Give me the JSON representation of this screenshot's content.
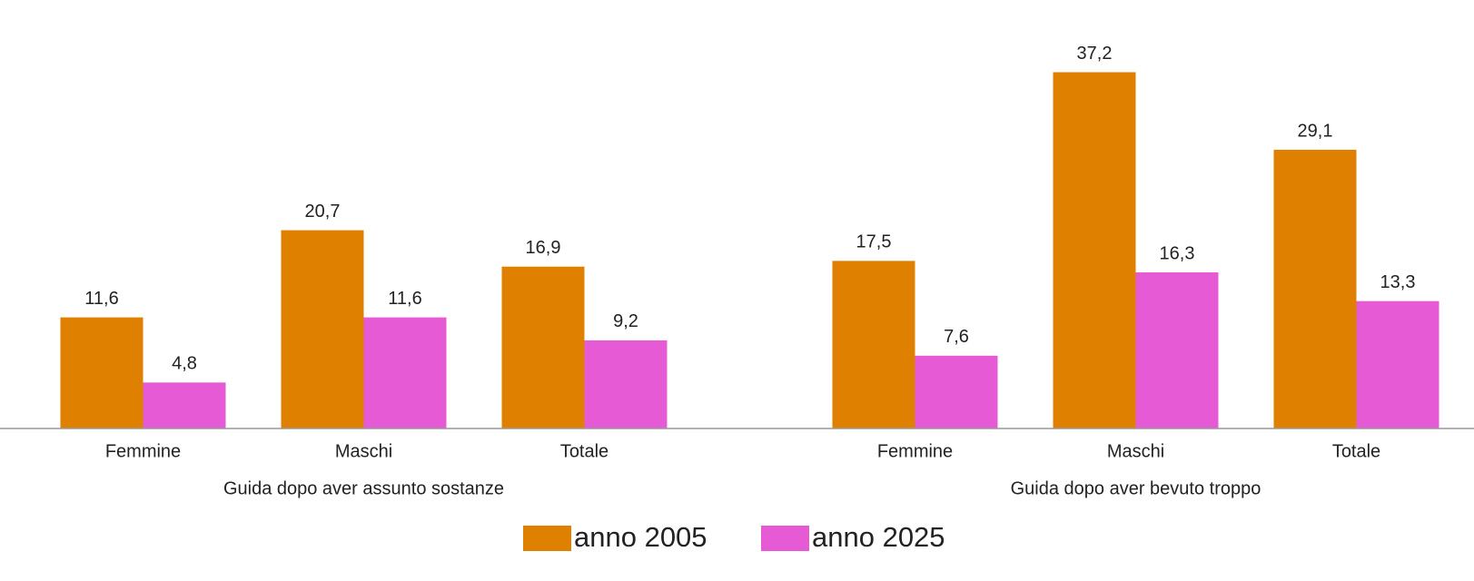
{
  "chart_data": {
    "type": "bar",
    "categories": [
      "Femmine",
      "Maschi",
      "Totale",
      "Femmine",
      "Maschi",
      "Totale"
    ],
    "category_groups": [
      "Guida dopo aver assunto sostanze",
      "Guida dopo aver bevuto troppo"
    ],
    "series": [
      {
        "name": "anno 2005",
        "color": "#e08000",
        "values": [
          11.6,
          20.7,
          16.9,
          17.5,
          37.2,
          29.1
        ],
        "value_labels": [
          "11,6",
          "20,7",
          "16,9",
          "17,5",
          "37,2",
          "29,1"
        ]
      },
      {
        "name": "anno 2025",
        "color": "#e65ad6",
        "values": [
          4.8,
          11.6,
          9.2,
          7.6,
          16.3,
          13.3
        ],
        "value_labels": [
          "4,8",
          "11,6",
          "9,2",
          "7,6",
          "16,3",
          "13,3"
        ]
      }
    ],
    "ylim": [
      0,
      40
    ],
    "legend": "bottom"
  }
}
